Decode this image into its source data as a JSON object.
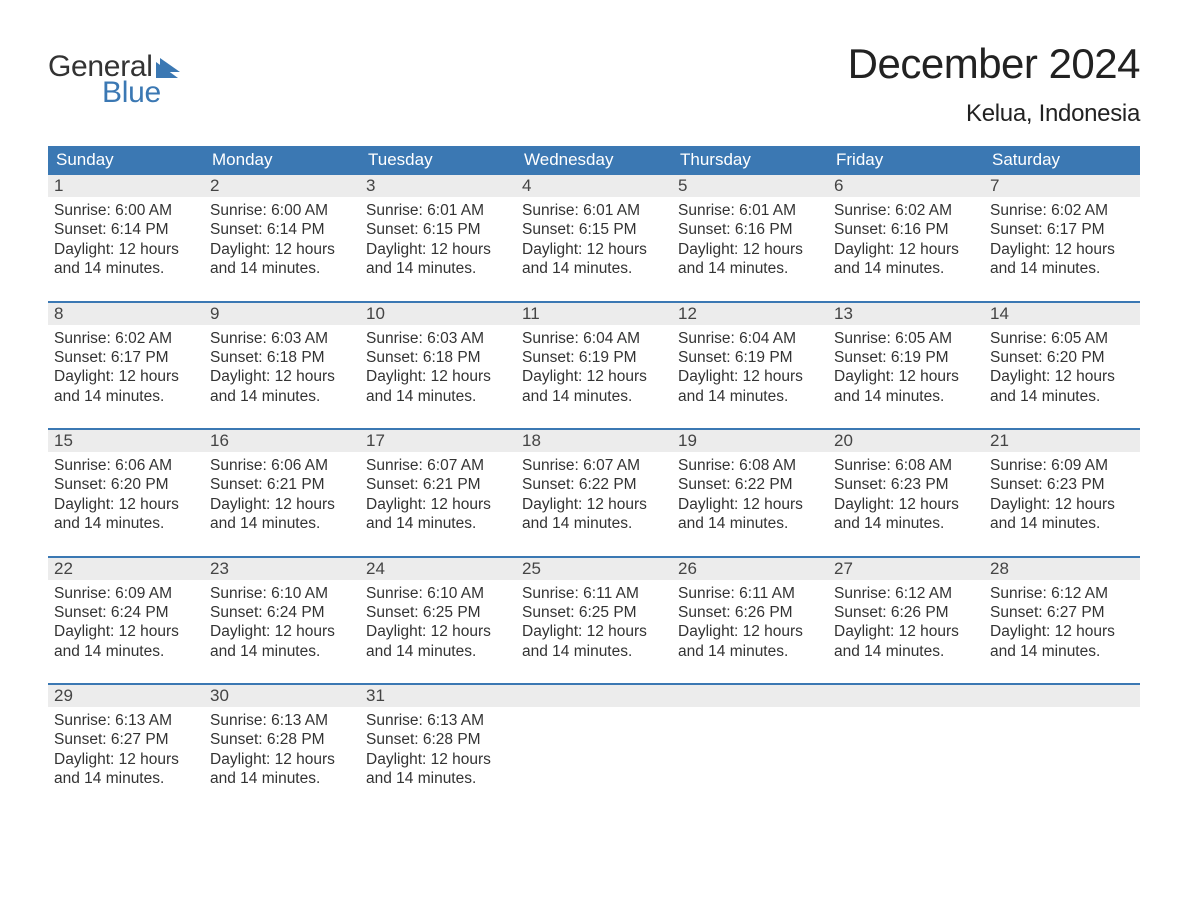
{
  "brand": {
    "word1": "General",
    "word2": "Blue",
    "word1_color": "#333333",
    "word2_color": "#3b78b3",
    "flag_color": "#3b78b3"
  },
  "title": {
    "month": "December 2024",
    "location": "Kelua, Indonesia"
  },
  "colors": {
    "header_bg": "#3b78b3",
    "header_text": "#ffffff",
    "daynum_bg": "#ececec",
    "week_border": "#3b78b3",
    "body_text": "#333333"
  },
  "weekdays": [
    "Sunday",
    "Monday",
    "Tuesday",
    "Wednesday",
    "Thursday",
    "Friday",
    "Saturday"
  ],
  "daylight_common": "Daylight: 12 hours and 14 minutes.",
  "weeks": [
    [
      {
        "n": "1",
        "sunrise": "Sunrise: 6:00 AM",
        "sunset": "Sunset: 6:14 PM"
      },
      {
        "n": "2",
        "sunrise": "Sunrise: 6:00 AM",
        "sunset": "Sunset: 6:14 PM"
      },
      {
        "n": "3",
        "sunrise": "Sunrise: 6:01 AM",
        "sunset": "Sunset: 6:15 PM"
      },
      {
        "n": "4",
        "sunrise": "Sunrise: 6:01 AM",
        "sunset": "Sunset: 6:15 PM"
      },
      {
        "n": "5",
        "sunrise": "Sunrise: 6:01 AM",
        "sunset": "Sunset: 6:16 PM"
      },
      {
        "n": "6",
        "sunrise": "Sunrise: 6:02 AM",
        "sunset": "Sunset: 6:16 PM"
      },
      {
        "n": "7",
        "sunrise": "Sunrise: 6:02 AM",
        "sunset": "Sunset: 6:17 PM"
      }
    ],
    [
      {
        "n": "8",
        "sunrise": "Sunrise: 6:02 AM",
        "sunset": "Sunset: 6:17 PM"
      },
      {
        "n": "9",
        "sunrise": "Sunrise: 6:03 AM",
        "sunset": "Sunset: 6:18 PM"
      },
      {
        "n": "10",
        "sunrise": "Sunrise: 6:03 AM",
        "sunset": "Sunset: 6:18 PM"
      },
      {
        "n": "11",
        "sunrise": "Sunrise: 6:04 AM",
        "sunset": "Sunset: 6:19 PM"
      },
      {
        "n": "12",
        "sunrise": "Sunrise: 6:04 AM",
        "sunset": "Sunset: 6:19 PM"
      },
      {
        "n": "13",
        "sunrise": "Sunrise: 6:05 AM",
        "sunset": "Sunset: 6:19 PM"
      },
      {
        "n": "14",
        "sunrise": "Sunrise: 6:05 AM",
        "sunset": "Sunset: 6:20 PM"
      }
    ],
    [
      {
        "n": "15",
        "sunrise": "Sunrise: 6:06 AM",
        "sunset": "Sunset: 6:20 PM"
      },
      {
        "n": "16",
        "sunrise": "Sunrise: 6:06 AM",
        "sunset": "Sunset: 6:21 PM"
      },
      {
        "n": "17",
        "sunrise": "Sunrise: 6:07 AM",
        "sunset": "Sunset: 6:21 PM"
      },
      {
        "n": "18",
        "sunrise": "Sunrise: 6:07 AM",
        "sunset": "Sunset: 6:22 PM"
      },
      {
        "n": "19",
        "sunrise": "Sunrise: 6:08 AM",
        "sunset": "Sunset: 6:22 PM"
      },
      {
        "n": "20",
        "sunrise": "Sunrise: 6:08 AM",
        "sunset": "Sunset: 6:23 PM"
      },
      {
        "n": "21",
        "sunrise": "Sunrise: 6:09 AM",
        "sunset": "Sunset: 6:23 PM"
      }
    ],
    [
      {
        "n": "22",
        "sunrise": "Sunrise: 6:09 AM",
        "sunset": "Sunset: 6:24 PM"
      },
      {
        "n": "23",
        "sunrise": "Sunrise: 6:10 AM",
        "sunset": "Sunset: 6:24 PM"
      },
      {
        "n": "24",
        "sunrise": "Sunrise: 6:10 AM",
        "sunset": "Sunset: 6:25 PM"
      },
      {
        "n": "25",
        "sunrise": "Sunrise: 6:11 AM",
        "sunset": "Sunset: 6:25 PM"
      },
      {
        "n": "26",
        "sunrise": "Sunrise: 6:11 AM",
        "sunset": "Sunset: 6:26 PM"
      },
      {
        "n": "27",
        "sunrise": "Sunrise: 6:12 AM",
        "sunset": "Sunset: 6:26 PM"
      },
      {
        "n": "28",
        "sunrise": "Sunrise: 6:12 AM",
        "sunset": "Sunset: 6:27 PM"
      }
    ],
    [
      {
        "n": "29",
        "sunrise": "Sunrise: 6:13 AM",
        "sunset": "Sunset: 6:27 PM"
      },
      {
        "n": "30",
        "sunrise": "Sunrise: 6:13 AM",
        "sunset": "Sunset: 6:28 PM"
      },
      {
        "n": "31",
        "sunrise": "Sunrise: 6:13 AM",
        "sunset": "Sunset: 6:28 PM"
      },
      null,
      null,
      null,
      null
    ]
  ]
}
